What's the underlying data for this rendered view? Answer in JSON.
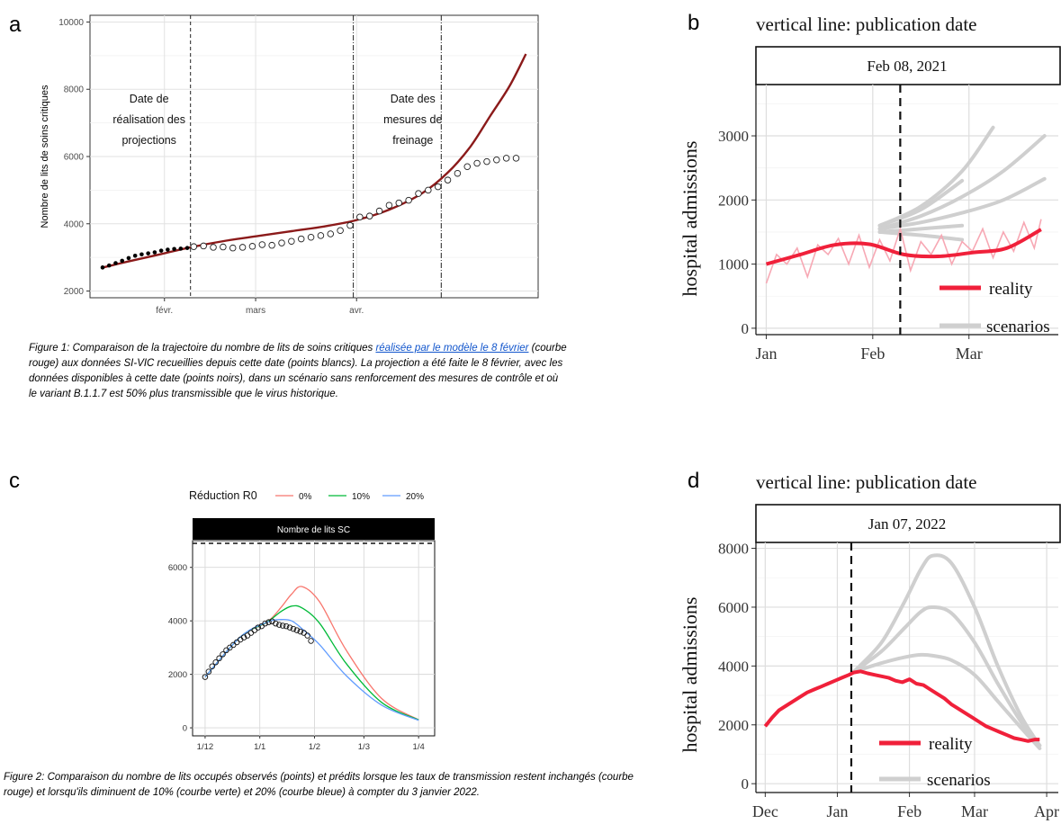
{
  "panel_letters": {
    "a": "a",
    "b": "b",
    "c": "c",
    "d": "d"
  },
  "captions": {
    "fig1_part1": "Figure 1: Comparaison de la trajectoire du nombre de lits de soins critiques ",
    "fig1_link": "réalisée par le modèle le 8 février",
    "fig1_part2": " (courbe rouge) aux données SI-VIC recueillies depuis cette date (points blancs). La projection a été faite le 8 février, avec les données disponibles à cette date (points noirs), dans un scénario sans renforcement des mesures de contrôle et où le variant B.1.1.7 est 50% plus transmissible que le virus historique.",
    "fig2": "Figure 2: Comparaison du nombre de lits occupés observés (points) et prédits lorsque les taux de transmission restent inchangés (courbe rouge) et lorsqu'ils diminuent de 10% (courbe verte) et 20% (courbe bleue) à compter du 3 janvier 2022."
  },
  "colors": {
    "projection_red": "#8b1a1a",
    "reality_red": "#f0203a",
    "reality_light": "#f7a8b4",
    "scenario_gray": "#cfcfcf",
    "c_red": "#f8766d",
    "c_green": "#00ba38",
    "c_blue": "#619cff"
  },
  "chart_data": [
    {
      "id": "a",
      "type": "line",
      "ylabel": "Nombre de lits de soins critiques",
      "xlabel": "",
      "x_ticks": [
        "févr.",
        "mars",
        "avr."
      ],
      "y_ticks": [
        2000,
        4000,
        6000,
        8000,
        10000
      ],
      "ylim": [
        1800,
        10200
      ],
      "x_unit": "days since 2021-01-01",
      "xlim": [
        12,
        143
      ],
      "grid": true,
      "annotations": [
        {
          "lines": [
            "Date de",
            "réalisation des",
            "projections"
          ],
          "x": 39
        },
        {
          "lines": [
            "Date des",
            "mesures de",
            "freinage"
          ],
          "x": 99
        }
      ],
      "vlines": [
        39,
        89,
        116
      ],
      "series": [
        {
          "name": "projection",
          "style": "line",
          "x": [
            12,
            20,
            30,
            39,
            50,
            60,
            70,
            80,
            90,
            100,
            110,
            118,
            125,
            131,
            137,
            142
          ],
          "values": [
            2700,
            2880,
            3100,
            3300,
            3500,
            3640,
            3780,
            3920,
            4110,
            4420,
            4900,
            5520,
            6300,
            7200,
            8100,
            9050
          ]
        },
        {
          "name": "observed_before",
          "style": "filled-points",
          "x": [
            12,
            14,
            16,
            18,
            20,
            22,
            24,
            26,
            28,
            30,
            32,
            34,
            36,
            38
          ],
          "values": [
            2700,
            2760,
            2830,
            2900,
            2980,
            3050,
            3090,
            3120,
            3150,
            3200,
            3230,
            3250,
            3260,
            3280
          ]
        },
        {
          "name": "observed_after",
          "style": "open-points",
          "x": [
            40,
            43,
            46,
            49,
            52,
            55,
            58,
            61,
            64,
            67,
            70,
            73,
            76,
            79,
            82,
            85,
            88,
            91,
            94,
            97,
            100,
            103,
            106,
            109,
            112,
            115,
            118,
            121,
            124,
            127,
            130,
            133,
            136,
            139
          ],
          "values": [
            3320,
            3340,
            3300,
            3310,
            3280,
            3300,
            3330,
            3380,
            3360,
            3430,
            3480,
            3550,
            3600,
            3650,
            3700,
            3800,
            3950,
            4200,
            4230,
            4380,
            4550,
            4620,
            4700,
            4900,
            5000,
            5100,
            5300,
            5500,
            5700,
            5800,
            5850,
            5900,
            5950,
            5950
          ]
        }
      ]
    },
    {
      "id": "b",
      "type": "line",
      "title": "vertical line: publication date",
      "strip_label": "Feb 08, 2021",
      "ylabel": "hospital admissions",
      "x_ticks": [
        "Jan",
        "Feb",
        "Mar"
      ],
      "x_unit": "days since 2021-01-01",
      "xlim": [
        -3,
        85
      ],
      "y_ticks": [
        0,
        1000,
        2000,
        3000
      ],
      "ylim": [
        -100,
        3800
      ],
      "vline": 39,
      "legend": {
        "entries": [
          "reality",
          "scenarios"
        ],
        "position": "bottom-right"
      },
      "series": [
        {
          "name": "reality",
          "style": "thick",
          "x": [
            0,
            10,
            20,
            30,
            40,
            50,
            60,
            70,
            80
          ],
          "values": [
            1000,
            1150,
            1300,
            1310,
            1150,
            1120,
            1180,
            1250,
            1540
          ]
        },
        {
          "name": "reality_daily",
          "style": "thin",
          "x": [
            0,
            3,
            6,
            9,
            12,
            15,
            18,
            21,
            24,
            27,
            30,
            33,
            36,
            39,
            42,
            45,
            48,
            51,
            54,
            57,
            60,
            63,
            66,
            69,
            72,
            75,
            78,
            80
          ],
          "values": [
            700,
            1150,
            1000,
            1250,
            800,
            1300,
            1150,
            1400,
            1000,
            1450,
            950,
            1380,
            1050,
            1550,
            900,
            1350,
            1150,
            1450,
            1000,
            1350,
            1200,
            1550,
            1100,
            1500,
            1200,
            1650,
            1250,
            1700
          ]
        },
        {
          "name": "scenarios_1",
          "style": "gray",
          "x": [
            33,
            45,
            57,
            66
          ],
          "values": [
            1600,
            1900,
            2450,
            3130
          ]
        },
        {
          "name": "scenarios_2",
          "style": "gray",
          "x": [
            33,
            45,
            57
          ],
          "values": [
            1600,
            1850,
            2300
          ]
        },
        {
          "name": "scenarios_3",
          "style": "gray",
          "x": [
            33,
            45,
            57,
            69,
            81
          ],
          "values": [
            1550,
            1750,
            2050,
            2450,
            3000
          ]
        },
        {
          "name": "scenarios_4",
          "style": "gray",
          "x": [
            33,
            45,
            57,
            69,
            81
          ],
          "values": [
            1550,
            1650,
            1800,
            2000,
            2330
          ]
        },
        {
          "name": "scenarios_5",
          "style": "gray",
          "x": [
            33,
            45,
            57
          ],
          "values": [
            1500,
            1550,
            1600
          ]
        },
        {
          "name": "scenarios_6",
          "style": "gray",
          "x": [
            33,
            45,
            57
          ],
          "values": [
            1500,
            1450,
            1380
          ]
        }
      ]
    },
    {
      "id": "c",
      "type": "line",
      "legend_title": "Réduction R0",
      "legend": {
        "entries": [
          "0%",
          "10%",
          "20%"
        ],
        "position": "top"
      },
      "strip_label": "Nombre de lits SC",
      "x_ticks": [
        "1/12",
        "1/1",
        "1/2",
        "1/3",
        "1/4"
      ],
      "x_unit": "days since 2021-12-01",
      "xlim": [
        -2,
        125
      ],
      "y_ticks": [
        0,
        2000,
        4000,
        6000
      ],
      "ylim": [
        -300,
        7000
      ],
      "hline": 7000,
      "series": [
        {
          "name": "0%",
          "x": [
            0,
            20,
            35,
            43,
            49,
            55,
            65,
            80,
            100,
            121
          ],
          "values": [
            1900,
            3400,
            3950,
            4500,
            5000,
            5280,
            4700,
            2900,
            1100,
            300
          ]
        },
        {
          "name": "10%",
          "x": [
            0,
            20,
            35,
            43,
            49,
            55,
            65,
            80,
            100,
            121
          ],
          "values": [
            1900,
            3400,
            3950,
            4350,
            4550,
            4480,
            3900,
            2400,
            950,
            300
          ]
        },
        {
          "name": "20%",
          "x": [
            0,
            20,
            35,
            43,
            49,
            55,
            65,
            80,
            100,
            121
          ],
          "values": [
            1900,
            3400,
            3950,
            4050,
            4000,
            3700,
            3100,
            1950,
            850,
            280
          ]
        },
        {
          "name": "observed",
          "style": "points",
          "x": [
            0,
            2,
            4,
            6,
            8,
            10,
            12,
            14,
            16,
            18,
            20,
            22,
            24,
            26,
            28,
            30,
            32,
            34,
            36,
            38,
            40,
            42,
            44,
            46,
            48,
            50,
            52,
            54,
            56,
            58,
            60
          ],
          "values": [
            1900,
            2100,
            2300,
            2450,
            2600,
            2750,
            2900,
            3000,
            3100,
            3200,
            3300,
            3380,
            3450,
            3550,
            3650,
            3750,
            3800,
            3900,
            3950,
            3980,
            3900,
            3850,
            3820,
            3800,
            3750,
            3700,
            3650,
            3600,
            3550,
            3450,
            3250
          ]
        }
      ]
    },
    {
      "id": "d",
      "type": "line",
      "title": "vertical line: publication date",
      "strip_label": "Jan 07, 2022",
      "ylabel": "hospital admissions",
      "x_ticks": [
        "Dec",
        "Jan",
        "Feb",
        "Mar",
        "Apr"
      ],
      "x_unit": "days since 2021-12-01",
      "xlim": [
        -4,
        126
      ],
      "y_ticks": [
        0,
        2000,
        4000,
        6000,
        8000
      ],
      "ylim": [
        -300,
        8200
      ],
      "vline": 37,
      "legend": {
        "entries": [
          "reality",
          "scenarios"
        ],
        "position": "bottom-right"
      },
      "series": [
        {
          "name": "reality",
          "style": "thick",
          "x": [
            0,
            3,
            6,
            9,
            12,
            15,
            18,
            21,
            24,
            27,
            30,
            33,
            36,
            38,
            41,
            44,
            47,
            50,
            53,
            56,
            59,
            62,
            65,
            68,
            71,
            74,
            77,
            80,
            83,
            86,
            89,
            92,
            95,
            98,
            101,
            104,
            107,
            110,
            113,
            116,
            118
          ],
          "values": [
            1950,
            2250,
            2500,
            2650,
            2800,
            2950,
            3100,
            3200,
            3300,
            3400,
            3500,
            3600,
            3700,
            3780,
            3820,
            3750,
            3700,
            3650,
            3600,
            3500,
            3450,
            3550,
            3400,
            3350,
            3200,
            3050,
            2900,
            2700,
            2550,
            2400,
            2250,
            2100,
            1950,
            1850,
            1750,
            1650,
            1550,
            1500,
            1450,
            1500,
            1500
          ]
        },
        {
          "name": "scenarios_1",
          "style": "gray",
          "x": [
            38,
            50,
            60,
            67,
            72,
            80,
            90,
            100,
            110,
            118
          ],
          "values": [
            3800,
            4800,
            6200,
            7300,
            7750,
            7500,
            6000,
            4000,
            2300,
            1300
          ]
        },
        {
          "name": "scenarios_2",
          "style": "gray",
          "x": [
            38,
            50,
            60,
            67,
            72,
            80,
            90,
            100,
            110,
            118
          ],
          "values": [
            3800,
            4500,
            5300,
            5850,
            6000,
            5800,
            4800,
            3400,
            2100,
            1300
          ]
        },
        {
          "name": "scenarios_3",
          "style": "gray",
          "x": [
            38,
            50,
            60,
            67,
            72,
            80,
            90,
            100,
            110,
            118
          ],
          "values": [
            3800,
            4100,
            4300,
            4380,
            4350,
            4200,
            3700,
            2800,
            1900,
            1200
          ]
        }
      ]
    }
  ]
}
